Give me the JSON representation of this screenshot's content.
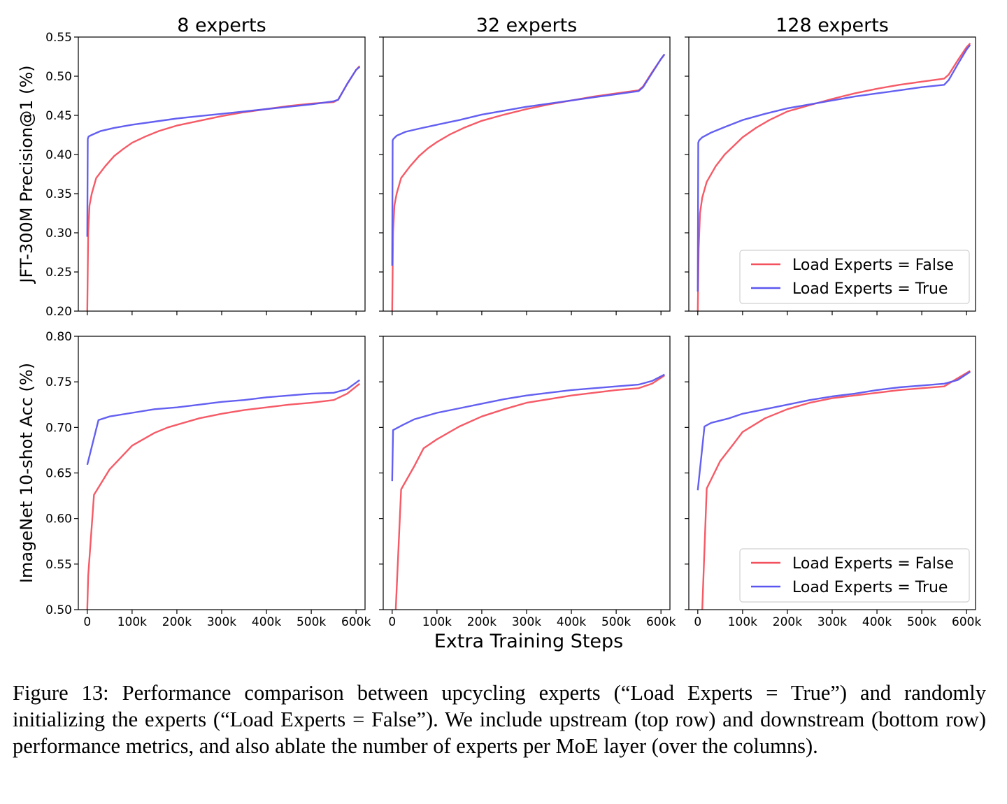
{
  "figure": {
    "caption": "Figure 13: Performance comparison between upcycling experts (“Load Experts = True”) and randomly initializing the experts (“Load Experts = False”). We include upstream (top row) and downstream (bottom row) performance metrics, and also ablate the number of experts per MoE layer (over the columns)."
  },
  "chart_data": {
    "type": "line",
    "column_titles": [
      "8 experts",
      "32 experts",
      "128 experts"
    ],
    "xlabel": "Extra Training Steps",
    "x_ticks": [
      0,
      100000,
      200000,
      300000,
      400000,
      500000,
      600000
    ],
    "x_tick_labels": [
      "0",
      "100k",
      "200k",
      "300k",
      "400k",
      "500k",
      "600k"
    ],
    "xlim": [
      -20000,
      620000
    ],
    "colors": {
      "False": "#f4515e",
      "True": "#5b56f0"
    },
    "legend_entries": [
      "Load Experts = False",
      "Load Experts = True"
    ],
    "legend_location": "lower-right (right column only)",
    "rows": [
      {
        "ylabel": "JFT-300M Precision@1 (%)",
        "ylim": [
          0.2,
          0.55
        ],
        "y_ticks": [
          0.2,
          0.25,
          0.3,
          0.35,
          0.4,
          0.45,
          0.5,
          0.55
        ],
        "y_tick_labels": [
          "0.20",
          "0.25",
          "0.30",
          "0.35",
          "0.40",
          "0.45",
          "0.50",
          "0.55"
        ],
        "panels": [
          {
            "series": [
              {
                "name": "Load Experts = False",
                "x": [
                  0,
                  2000,
                  5000,
                  10000,
                  20000,
                  40000,
                  60000,
                  80000,
                  100000,
                  130000,
                  160000,
                  200000,
                  250000,
                  300000,
                  350000,
                  400000,
                  450000,
                  500000,
                  550000,
                  560000,
                  580000,
                  600000,
                  608000
                ],
                "y": [
                  0.2,
                  0.3,
                  0.335,
                  0.35,
                  0.37,
                  0.385,
                  0.398,
                  0.407,
                  0.415,
                  0.423,
                  0.43,
                  0.437,
                  0.443,
                  0.449,
                  0.454,
                  0.458,
                  0.462,
                  0.465,
                  0.467,
                  0.47,
                  0.49,
                  0.508,
                  0.513
                ]
              },
              {
                "name": "Load Experts = True",
                "x": [
                  0,
                  1000,
                  3000,
                  10000,
                  30000,
                  60000,
                  100000,
                  150000,
                  200000,
                  250000,
                  300000,
                  350000,
                  400000,
                  450000,
                  500000,
                  550000,
                  560000,
                  580000,
                  600000,
                  608000
                ],
                "y": [
                  0.295,
                  0.42,
                  0.423,
                  0.425,
                  0.43,
                  0.434,
                  0.438,
                  0.442,
                  0.446,
                  0.449,
                  0.452,
                  0.455,
                  0.458,
                  0.461,
                  0.464,
                  0.468,
                  0.47,
                  0.49,
                  0.508,
                  0.512
                ]
              }
            ]
          },
          {
            "series": [
              {
                "name": "Load Experts = False",
                "x": [
                  0,
                  2000,
                  5000,
                  10000,
                  20000,
                  40000,
                  60000,
                  80000,
                  100000,
                  130000,
                  160000,
                  200000,
                  250000,
                  300000,
                  350000,
                  400000,
                  450000,
                  500000,
                  550000,
                  560000,
                  580000,
                  600000,
                  608000
                ],
                "y": [
                  0.2,
                  0.3,
                  0.335,
                  0.35,
                  0.37,
                  0.385,
                  0.398,
                  0.408,
                  0.416,
                  0.426,
                  0.434,
                  0.443,
                  0.451,
                  0.458,
                  0.464,
                  0.469,
                  0.474,
                  0.478,
                  0.482,
                  0.487,
                  0.505,
                  0.522,
                  0.528
                ]
              },
              {
                "name": "Load Experts = True",
                "x": [
                  0,
                  1000,
                  3000,
                  10000,
                  30000,
                  60000,
                  100000,
                  150000,
                  200000,
                  250000,
                  300000,
                  350000,
                  400000,
                  450000,
                  500000,
                  550000,
                  560000,
                  580000,
                  600000,
                  608000
                ],
                "y": [
                  0.258,
                  0.418,
                  0.42,
                  0.424,
                  0.429,
                  0.433,
                  0.438,
                  0.444,
                  0.451,
                  0.456,
                  0.461,
                  0.465,
                  0.469,
                  0.473,
                  0.477,
                  0.481,
                  0.486,
                  0.504,
                  0.522,
                  0.528
                ]
              }
            ]
          },
          {
            "series": [
              {
                "name": "Load Experts = False",
                "x": [
                  0,
                  2000,
                  5000,
                  10000,
                  20000,
                  40000,
                  60000,
                  80000,
                  100000,
                  130000,
                  160000,
                  200000,
                  250000,
                  300000,
                  350000,
                  400000,
                  450000,
                  500000,
                  550000,
                  560000,
                  580000,
                  600000,
                  608000
                ],
                "y": [
                  0.2,
                  0.28,
                  0.325,
                  0.345,
                  0.365,
                  0.385,
                  0.4,
                  0.411,
                  0.422,
                  0.434,
                  0.444,
                  0.455,
                  0.463,
                  0.471,
                  0.478,
                  0.484,
                  0.489,
                  0.493,
                  0.497,
                  0.502,
                  0.52,
                  0.537,
                  0.542
                ]
              },
              {
                "name": "Load Experts = True",
                "x": [
                  0,
                  1000,
                  3000,
                  10000,
                  30000,
                  60000,
                  100000,
                  150000,
                  200000,
                  250000,
                  300000,
                  350000,
                  400000,
                  450000,
                  500000,
                  550000,
                  560000,
                  580000,
                  600000,
                  608000
                ],
                "y": [
                  0.225,
                  0.415,
                  0.418,
                  0.422,
                  0.428,
                  0.435,
                  0.444,
                  0.452,
                  0.459,
                  0.464,
                  0.469,
                  0.474,
                  0.478,
                  0.482,
                  0.486,
                  0.489,
                  0.495,
                  0.515,
                  0.534,
                  0.54
                ]
              }
            ]
          }
        ]
      },
      {
        "ylabel": "ImageNet 10-shot Acc (%)",
        "ylim": [
          0.5,
          0.8
        ],
        "y_ticks": [
          0.5,
          0.55,
          0.6,
          0.65,
          0.7,
          0.75,
          0.8
        ],
        "y_tick_labels": [
          "0.50",
          "0.55",
          "0.60",
          "0.65",
          "0.70",
          "0.75",
          "0.80"
        ],
        "panels": [
          {
            "series": [
              {
                "name": "Load Experts = False",
                "x": [
                  0,
                  2000,
                  15000,
                  50000,
                  100000,
                  150000,
                  180000,
                  250000,
                  300000,
                  350000,
                  400000,
                  450000,
                  500000,
                  550000,
                  580000,
                  608000
                ],
                "y": [
                  0.5,
                  0.537,
                  0.626,
                  0.654,
                  0.68,
                  0.694,
                  0.7,
                  0.71,
                  0.715,
                  0.719,
                  0.722,
                  0.725,
                  0.727,
                  0.73,
                  0.737,
                  0.748
                ]
              },
              {
                "name": "Load Experts = True",
                "x": [
                  0,
                  25000,
                  50000,
                  100000,
                  150000,
                  200000,
                  250000,
                  300000,
                  350000,
                  400000,
                  450000,
                  500000,
                  550000,
                  580000,
                  608000
                ],
                "y": [
                  0.659,
                  0.708,
                  0.712,
                  0.716,
                  0.72,
                  0.722,
                  0.725,
                  0.728,
                  0.73,
                  0.733,
                  0.735,
                  0.737,
                  0.738,
                  0.742,
                  0.752
                ]
              }
            ]
          },
          {
            "series": [
              {
                "name": "Load Experts = False",
                "x": [
                  8000,
                  20000,
                  50000,
                  70000,
                  100000,
                  150000,
                  200000,
                  250000,
                  300000,
                  350000,
                  400000,
                  450000,
                  500000,
                  550000,
                  580000,
                  608000
                ],
                "y": [
                  0.5,
                  0.632,
                  0.658,
                  0.677,
                  0.687,
                  0.701,
                  0.712,
                  0.72,
                  0.727,
                  0.731,
                  0.735,
                  0.738,
                  0.741,
                  0.743,
                  0.748,
                  0.757
                ]
              },
              {
                "name": "Load Experts = True",
                "x": [
                  0,
                  2000,
                  25000,
                  50000,
                  100000,
                  150000,
                  200000,
                  250000,
                  300000,
                  350000,
                  400000,
                  450000,
                  500000,
                  550000,
                  580000,
                  608000
                ],
                "y": [
                  0.641,
                  0.697,
                  0.703,
                  0.709,
                  0.716,
                  0.721,
                  0.726,
                  0.731,
                  0.735,
                  0.738,
                  0.741,
                  0.743,
                  0.745,
                  0.747,
                  0.751,
                  0.758
                ]
              }
            ]
          },
          {
            "series": [
              {
                "name": "Load Experts = False",
                "x": [
                  10000,
                  20000,
                  50000,
                  80000,
                  100000,
                  150000,
                  200000,
                  250000,
                  300000,
                  350000,
                  400000,
                  450000,
                  500000,
                  550000,
                  580000,
                  608000
                ],
                "y": [
                  0.5,
                  0.633,
                  0.663,
                  0.682,
                  0.695,
                  0.71,
                  0.72,
                  0.727,
                  0.732,
                  0.735,
                  0.738,
                  0.741,
                  0.743,
                  0.745,
                  0.754,
                  0.762
                ]
              },
              {
                "name": "Load Experts = True",
                "x": [
                  0,
                  15000,
                  30000,
                  70000,
                  100000,
                  150000,
                  200000,
                  250000,
                  300000,
                  350000,
                  400000,
                  450000,
                  500000,
                  550000,
                  580000,
                  608000
                ],
                "y": [
                  0.631,
                  0.701,
                  0.705,
                  0.71,
                  0.715,
                  0.72,
                  0.725,
                  0.73,
                  0.734,
                  0.737,
                  0.741,
                  0.744,
                  0.746,
                  0.748,
                  0.752,
                  0.761
                ]
              }
            ]
          }
        ]
      }
    ]
  }
}
